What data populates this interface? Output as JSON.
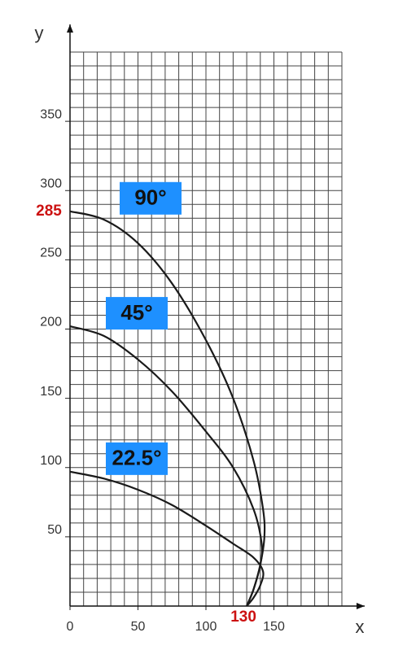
{
  "chart_data": {
    "type": "line",
    "xlabel": "x",
    "ylabel": "y",
    "xlim": [
      0,
      200
    ],
    "ylim": [
      0,
      400
    ],
    "xticks": [
      0,
      50,
      100,
      150
    ],
    "yticks": [
      50,
      100,
      150,
      200,
      250,
      300,
      350
    ],
    "grid": true,
    "minor_divisions": 5,
    "series": [
      {
        "name": "90°",
        "color": "#1a1a1a",
        "x": [
          0,
          25,
          50,
          75,
          100,
          120,
          135,
          142,
          143,
          140,
          135,
          130
        ],
        "values": [
          285,
          279,
          262,
          233,
          192,
          150,
          105,
          70,
          50,
          30,
          12,
          0
        ]
      },
      {
        "name": "45°",
        "color": "#1a1a1a",
        "x": [
          0,
          25,
          50,
          75,
          100,
          120,
          135,
          141,
          140,
          135,
          130
        ],
        "values": [
          202,
          195,
          178,
          155,
          126,
          100,
          70,
          45,
          30,
          12,
          0
        ]
      },
      {
        "name": "22.5°",
        "color": "#1a1a1a",
        "x": [
          0,
          25,
          50,
          75,
          100,
          120,
          135,
          142,
          140,
          135,
          130
        ],
        "values": [
          97,
          92,
          84,
          73,
          58,
          45,
          35,
          25,
          15,
          6,
          0
        ]
      }
    ],
    "label_color": "#1e90ff",
    "annotations": [
      {
        "text": "285",
        "x": 0,
        "y": 285,
        "color": "#cc1111"
      },
      {
        "text": "130",
        "x": 130,
        "y": 0,
        "color": "#cc1111"
      }
    ]
  }
}
